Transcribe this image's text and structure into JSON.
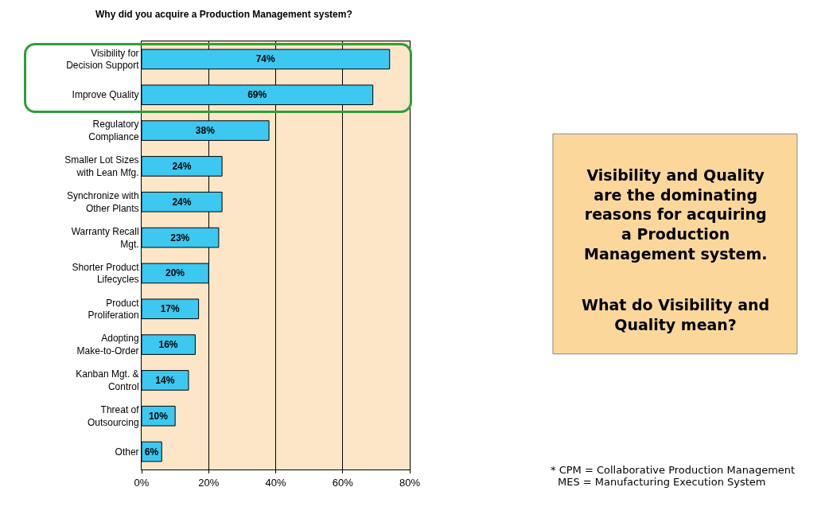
{
  "chart_data": {
    "type": "bar",
    "orientation": "horizontal",
    "title": "Why did you acquire a Production Management system?",
    "categories": [
      "Visibility for Decision Support",
      "Improve Quality",
      "Regulatory Compliance",
      "Smaller Lot Sizes with Lean Mfg.",
      "Synchronize with Other Plants",
      "Warranty Recall Mgt.",
      "Shorter Product Lifecycles",
      "Product Proliferation",
      "Adopting Make-to-Order",
      "Kanban Mgt. & Control",
      "Threat of Outsourcing",
      "Other"
    ],
    "values": [
      74,
      69,
      38,
      24,
      24,
      23,
      20,
      17,
      16,
      14,
      10,
      6
    ],
    "value_labels": [
      "74%",
      "69%",
      "38%",
      "24%",
      "24%",
      "23%",
      "20%",
      "17%",
      "16%",
      "14%",
      "10%",
      "6%"
    ],
    "color": "#3cc8f0",
    "xlim": [
      0,
      80
    ],
    "xticks": [
      {
        "value": 0,
        "label": "0%"
      },
      {
        "value": 20,
        "label": "20%"
      },
      {
        "value": 40,
        "label": "40%"
      },
      {
        "value": 60,
        "label": "60%"
      },
      {
        "value": 80,
        "label": "80%"
      }
    ],
    "grid": "x",
    "annotations": [
      "Visibility and Quality are the dominating reasons for acquiring a Production Management system.",
      "What do Visibility and Quality mean?",
      "* CPM = Collaborative Production Management",
      "MES = Manufacturing Execution System"
    ]
  }
}
